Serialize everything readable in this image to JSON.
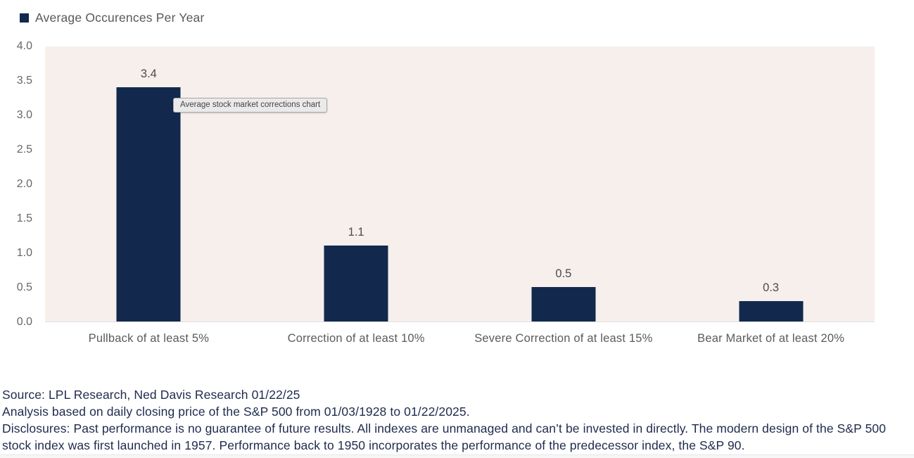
{
  "colors": {
    "navy": "#12294d",
    "plot_background": "#f6efec",
    "footer_text": "#1e2b4d"
  },
  "legend": {
    "label": "Average Occurences Per Year"
  },
  "tooltip": {
    "text": "Average stock market corrections chart"
  },
  "chart_data": {
    "type": "bar",
    "title": "Average Occurences Per Year",
    "categories": [
      "Pullback of at least 5%",
      "Correction of at least 10%",
      "Severe Correction of at least 15%",
      "Bear Market of at least 20%"
    ],
    "values": [
      3.4,
      1.1,
      0.5,
      0.3
    ],
    "value_labels": [
      "3.4",
      "1.1",
      "0.5",
      "0.3"
    ],
    "xlabel": "",
    "ylabel": "",
    "ylim": [
      0,
      4
    ],
    "yticks": [
      "4.0",
      "3.5",
      "3.0",
      "2.5",
      "2.0",
      "1.5",
      "1.0",
      "0.5",
      "0.0"
    ],
    "grid": false,
    "legend_position": "top-left",
    "bar_color": "#12294d"
  },
  "footer": {
    "line1": "Source: LPL Research, Ned Davis Research 01/22/25",
    "line2": "Analysis based on daily closing price of the S&P 500 from 01/03/1928 to 01/22/2025.",
    "line3": "Disclosures: Past performance is no guarantee of future results. All indexes are unmanaged and can’t be invested in directly. The modern design of the S&P 500 stock index was first launched in 1957. Performance back to 1950 incorporates the performance of the predecessor index, the S&P 90."
  }
}
